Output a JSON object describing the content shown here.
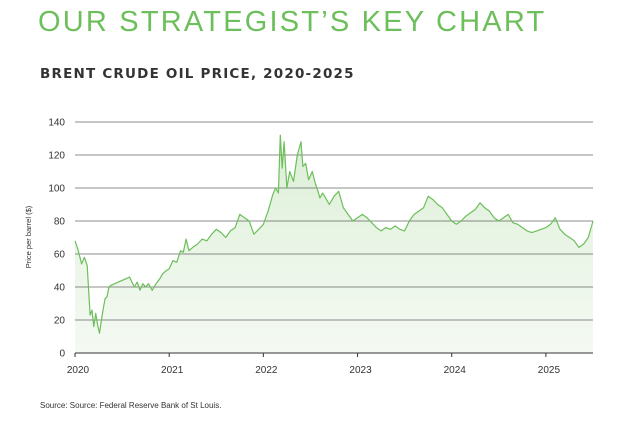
{
  "headline": "OUR STRATEGIST’S KEY CHART",
  "source": "Source: Source: Federal Reserve Bank of St Louis.",
  "colors": {
    "accent": "#6cbf5a",
    "fill": "#e9f4e6",
    "grid": "#555555",
    "text": "#333333"
  },
  "chart_data": {
    "type": "area",
    "title": "BRENT CRUDE OIL PRICE, 2020-2025",
    "xlabel": "",
    "ylabel": "Price per barrel ($)",
    "ylim": [
      0,
      140
    ],
    "xlim": [
      2020.0,
      2025.5
    ],
    "yticks": [
      0,
      20,
      40,
      60,
      80,
      100,
      120,
      140
    ],
    "xticks": [
      2020,
      2021,
      2022,
      2023,
      2024,
      2025
    ],
    "grid": "horizontal",
    "legend": "none",
    "series": [
      {
        "name": "",
        "x": [
          2020.0,
          2020.03,
          2020.07,
          2020.1,
          2020.13,
          2020.16,
          2020.18,
          2020.2,
          2020.22,
          2020.24,
          2020.26,
          2020.28,
          2020.3,
          2020.32,
          2020.34,
          2020.36,
          2020.38,
          2020.42,
          2020.5,
          2020.58,
          2020.63,
          2020.66,
          2020.69,
          2020.72,
          2020.75,
          2020.78,
          2020.82,
          2020.86,
          2020.9,
          2020.93,
          2020.97,
          2021.0,
          2021.04,
          2021.08,
          2021.12,
          2021.15,
          2021.18,
          2021.21,
          2021.25,
          2021.3,
          2021.35,
          2021.4,
          2021.45,
          2021.5,
          2021.55,
          2021.6,
          2021.65,
          2021.7,
          2021.75,
          2021.8,
          2021.85,
          2021.9,
          2021.95,
          2022.0,
          2022.05,
          2022.1,
          2022.13,
          2022.16,
          2022.18,
          2022.2,
          2022.22,
          2022.25,
          2022.28,
          2022.32,
          2022.36,
          2022.4,
          2022.42,
          2022.45,
          2022.48,
          2022.52,
          2022.55,
          2022.58,
          2022.6,
          2022.63,
          2022.67,
          2022.7,
          2022.75,
          2022.8,
          2022.85,
          2022.9,
          2022.95,
          2023.0,
          2023.05,
          2023.1,
          2023.15,
          2023.2,
          2023.25,
          2023.3,
          2023.35,
          2023.4,
          2023.45,
          2023.5,
          2023.55,
          2023.6,
          2023.65,
          2023.7,
          2023.75,
          2023.8,
          2023.85,
          2023.9,
          2023.95,
          2024.0,
          2024.05,
          2024.1,
          2024.15,
          2024.2,
          2024.25,
          2024.3,
          2024.35,
          2024.4,
          2024.45,
          2024.5,
          2024.55,
          2024.6,
          2024.65,
          2024.7,
          2024.75,
          2024.8,
          2024.85,
          2024.9,
          2024.95,
          2025.0,
          2025.05,
          2025.1,
          2025.15,
          2025.2,
          2025.25,
          2025.3,
          2025.35,
          2025.4,
          2025.45,
          2025.5
        ],
        "y": [
          68,
          63,
          54,
          58,
          53,
          23,
          26,
          16,
          24,
          17,
          12,
          20,
          27,
          33,
          34,
          40,
          41,
          42,
          44,
          46,
          40,
          43,
          38,
          42,
          40,
          42,
          38,
          42,
          45,
          48,
          50,
          51,
          56,
          55,
          62,
          61,
          69,
          62,
          64,
          66,
          69,
          68,
          72,
          75,
          73,
          70,
          74,
          76,
          84,
          82,
          80,
          72,
          75,
          78,
          86,
          96,
          100,
          97,
          132,
          112,
          128,
          100,
          110,
          104,
          120,
          128,
          113,
          115,
          105,
          110,
          103,
          98,
          94,
          97,
          93,
          90,
          95,
          98,
          88,
          84,
          80,
          82,
          84,
          82,
          79,
          76,
          74,
          76,
          75,
          77,
          75,
          74,
          80,
          84,
          86,
          88,
          95,
          93,
          90,
          88,
          84,
          80,
          78,
          80,
          83,
          85,
          87,
          91,
          88,
          86,
          82,
          80,
          82,
          84,
          79,
          78,
          76,
          74,
          73,
          74,
          75,
          76,
          78,
          82,
          75,
          72,
          70,
          68,
          64,
          66,
          70,
          80
        ]
      }
    ]
  }
}
